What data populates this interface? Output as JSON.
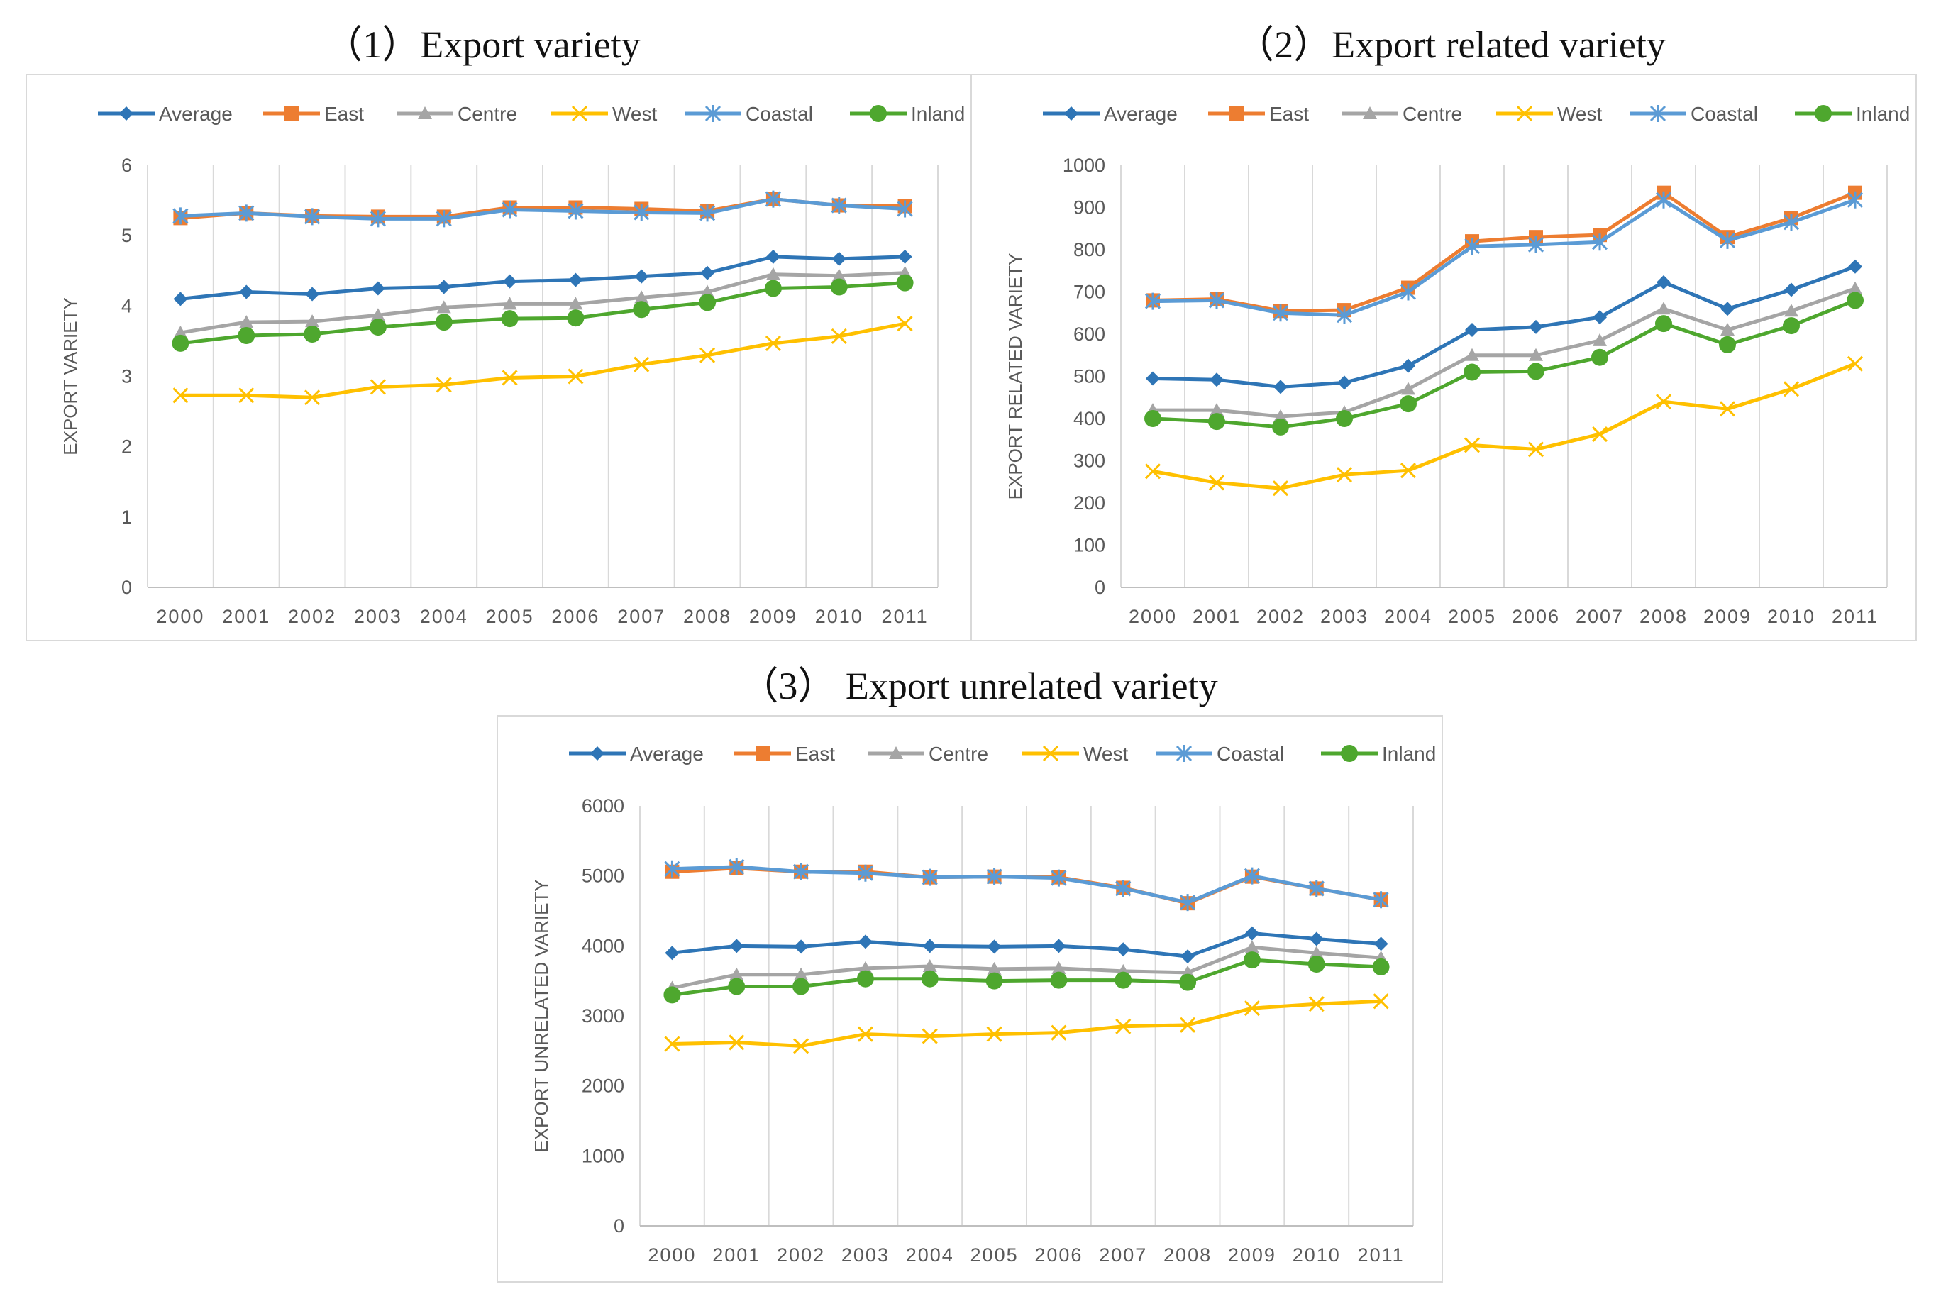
{
  "chart_data": [
    {
      "type": "line",
      "title": "（1）Export variety",
      "ylabel": "EXPORT VARIETY",
      "xlabel": "",
      "ylim": [
        0,
        6
      ],
      "yticks": [
        "0",
        "1",
        "2",
        "3",
        "4",
        "5",
        "6"
      ],
      "categories": [
        "2000",
        "2001",
        "2002",
        "2003",
        "2004",
        "2005",
        "2006",
        "2007",
        "2008",
        "2009",
        "2010",
        "2011"
      ],
      "legend_position": "top",
      "grid": "vertical",
      "series": [
        {
          "name": "Average",
          "color": "#2E75B6",
          "marker": "diamond",
          "values": [
            4.1,
            4.2,
            4.17,
            4.25,
            4.27,
            4.35,
            4.37,
            4.42,
            4.47,
            4.7,
            4.67,
            4.7
          ]
        },
        {
          "name": "East",
          "color": "#ED7D31",
          "marker": "square",
          "values": [
            5.25,
            5.32,
            5.28,
            5.27,
            5.27,
            5.4,
            5.4,
            5.38,
            5.35,
            5.52,
            5.43,
            5.42
          ]
        },
        {
          "name": "Centre",
          "color": "#A5A5A5",
          "marker": "triangle",
          "values": [
            3.62,
            3.77,
            3.78,
            3.87,
            3.98,
            4.03,
            4.03,
            4.12,
            4.2,
            4.45,
            4.43,
            4.47
          ]
        },
        {
          "name": "West",
          "color": "#FFC000",
          "marker": "x",
          "values": [
            2.73,
            2.73,
            2.7,
            2.85,
            2.88,
            2.98,
            3.0,
            3.17,
            3.3,
            3.47,
            3.57,
            3.75
          ]
        },
        {
          "name": "Coastal",
          "color": "#5B9BD5",
          "marker": "star",
          "values": [
            5.28,
            5.32,
            5.27,
            5.24,
            5.24,
            5.37,
            5.35,
            5.33,
            5.32,
            5.52,
            5.43,
            5.38
          ]
        },
        {
          "name": "Inland",
          "color": "#4EA72E",
          "marker": "circle",
          "values": [
            3.47,
            3.58,
            3.6,
            3.7,
            3.77,
            3.82,
            3.83,
            3.95,
            4.05,
            4.25,
            4.27,
            4.33
          ]
        }
      ]
    },
    {
      "type": "line",
      "title": "（2）Export related variety",
      "ylabel": "EXPORT RELATED VARIETY",
      "xlabel": "",
      "ylim": [
        0,
        1000
      ],
      "yticks": [
        "0",
        "100",
        "200",
        "300",
        "400",
        "500",
        "600",
        "700",
        "800",
        "900",
        "1000"
      ],
      "categories": [
        "2000",
        "2001",
        "2002",
        "2003",
        "2004",
        "2005",
        "2006",
        "2007",
        "2008",
        "2009",
        "2010",
        "2011"
      ],
      "legend_position": "top",
      "grid": "vertical",
      "series": [
        {
          "name": "Average",
          "color": "#2E75B6",
          "marker": "diamond",
          "values": [
            495,
            492,
            475,
            485,
            525,
            610,
            617,
            640,
            723,
            660,
            705,
            760
          ]
        },
        {
          "name": "East",
          "color": "#ED7D31",
          "marker": "square",
          "values": [
            680,
            683,
            655,
            657,
            710,
            820,
            830,
            835,
            935,
            830,
            875,
            935
          ]
        },
        {
          "name": "Centre",
          "color": "#A5A5A5",
          "marker": "triangle",
          "values": [
            420,
            420,
            405,
            415,
            470,
            550,
            550,
            585,
            660,
            610,
            655,
            708
          ]
        },
        {
          "name": "West",
          "color": "#FFC000",
          "marker": "x",
          "values": [
            275,
            248,
            235,
            267,
            277,
            337,
            327,
            363,
            440,
            423,
            470,
            530
          ]
        },
        {
          "name": "Coastal",
          "color": "#5B9BD5",
          "marker": "star",
          "values": [
            678,
            680,
            650,
            645,
            700,
            808,
            812,
            818,
            918,
            822,
            865,
            918
          ]
        },
        {
          "name": "Inland",
          "color": "#4EA72E",
          "marker": "circle",
          "values": [
            400,
            393,
            380,
            400,
            435,
            510,
            512,
            545,
            625,
            575,
            620,
            680
          ]
        }
      ]
    },
    {
      "type": "line",
      "title": "（3） Export unrelated variety",
      "ylabel": "EXPORT UNRELATED VARIETY",
      "xlabel": "",
      "ylim": [
        0,
        6000
      ],
      "yticks": [
        "0",
        "1000",
        "2000",
        "3000",
        "4000",
        "5000",
        "6000"
      ],
      "categories": [
        "2000",
        "2001",
        "2002",
        "2003",
        "2004",
        "2005",
        "2006",
        "2007",
        "2008",
        "2009",
        "2010",
        "2011"
      ],
      "legend_position": "top",
      "grid": "vertical",
      "series": [
        {
          "name": "Average",
          "color": "#2E75B6",
          "marker": "diamond",
          "values": [
            3900,
            4000,
            3990,
            4060,
            4000,
            3990,
            4000,
            3950,
            3850,
            4180,
            4100,
            4030
          ]
        },
        {
          "name": "East",
          "color": "#ED7D31",
          "marker": "square",
          "values": [
            5060,
            5110,
            5060,
            5060,
            4980,
            4990,
            4980,
            4830,
            4610,
            4990,
            4820,
            4660
          ]
        },
        {
          "name": "Centre",
          "color": "#A5A5A5",
          "marker": "triangle",
          "values": [
            3400,
            3590,
            3590,
            3680,
            3710,
            3670,
            3680,
            3640,
            3620,
            3980,
            3900,
            3830
          ]
        },
        {
          "name": "West",
          "color": "#FFC000",
          "marker": "x",
          "values": [
            2600,
            2620,
            2570,
            2740,
            2710,
            2740,
            2760,
            2850,
            2870,
            3110,
            3170,
            3210
          ]
        },
        {
          "name": "Coastal",
          "color": "#5B9BD5",
          "marker": "star",
          "values": [
            5100,
            5130,
            5060,
            5040,
            4980,
            4990,
            4970,
            4820,
            4620,
            5000,
            4820,
            4660
          ]
        },
        {
          "name": "Inland",
          "color": "#4EA72E",
          "marker": "circle",
          "values": [
            3300,
            3420,
            3420,
            3530,
            3530,
            3500,
            3510,
            3510,
            3480,
            3800,
            3740,
            3700
          ]
        }
      ]
    }
  ]
}
